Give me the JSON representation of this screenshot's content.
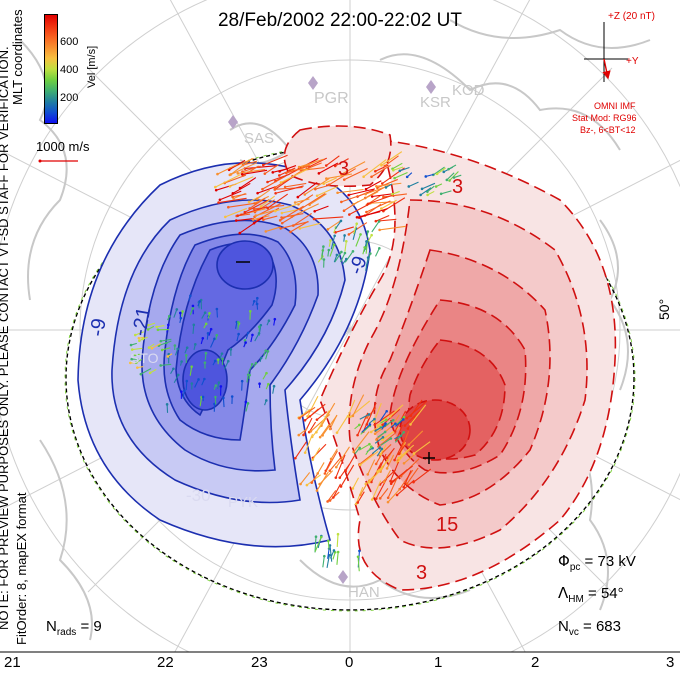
{
  "title": "28/Feb/2002 22:00-22:02 UT",
  "coordinates": "MLT coordinates",
  "note": "NOTE: FOR PREVIEW PURPOSES ONLY. PLEASE CONTACT VT-SD STAFF FOR VERIFICATION.",
  "fit_order": "FitOrder: 8, mapEX format",
  "colorbar": {
    "title": "Vel [m/s]",
    "ticks": [
      "600",
      "400",
      "200"
    ],
    "colors": [
      "#e00000",
      "#f03010",
      "#f86020",
      "#f89030",
      "#f8c040",
      "#c0e040",
      "#70d040",
      "#40b070",
      "#2080a0",
      "#1050d0",
      "#1010f0"
    ]
  },
  "reference_vector": {
    "label": "1000 m/s",
    "color": "#e00000"
  },
  "imf": {
    "bz_label": "+Z (20 nT)",
    "by_label": "+Y",
    "source": "OMNI IMF",
    "stat_model": "Stat Mod: RG96",
    "condition": "Bz-, 6<BT<12",
    "color": "#e00000"
  },
  "latitude_label": "50°",
  "contour_labels": {
    "negative": [
      "-9",
      "-21",
      "-9",
      "-30"
    ],
    "positive": [
      "3",
      "3",
      "15",
      "3"
    ]
  },
  "stations": [
    "PGR",
    "KSR",
    "KOD",
    "SAS",
    "PYK",
    "HAN",
    "STO"
  ],
  "stats": {
    "phi_pc": "73 kV",
    "lambda_hm": "54°",
    "n_vc": "683",
    "n_rads": "9"
  },
  "mlt_ticks": [
    "21",
    "22",
    "23",
    "0",
    "1",
    "2",
    "3"
  ],
  "colors": {
    "negative_contour": "#1c2fb0",
    "positive_contour": "#d01010",
    "negative_fill": "#6a6fe8",
    "positive_fill": "#e84040",
    "coastline": "#c8c8c8",
    "hmb": "#80d040"
  }
}
